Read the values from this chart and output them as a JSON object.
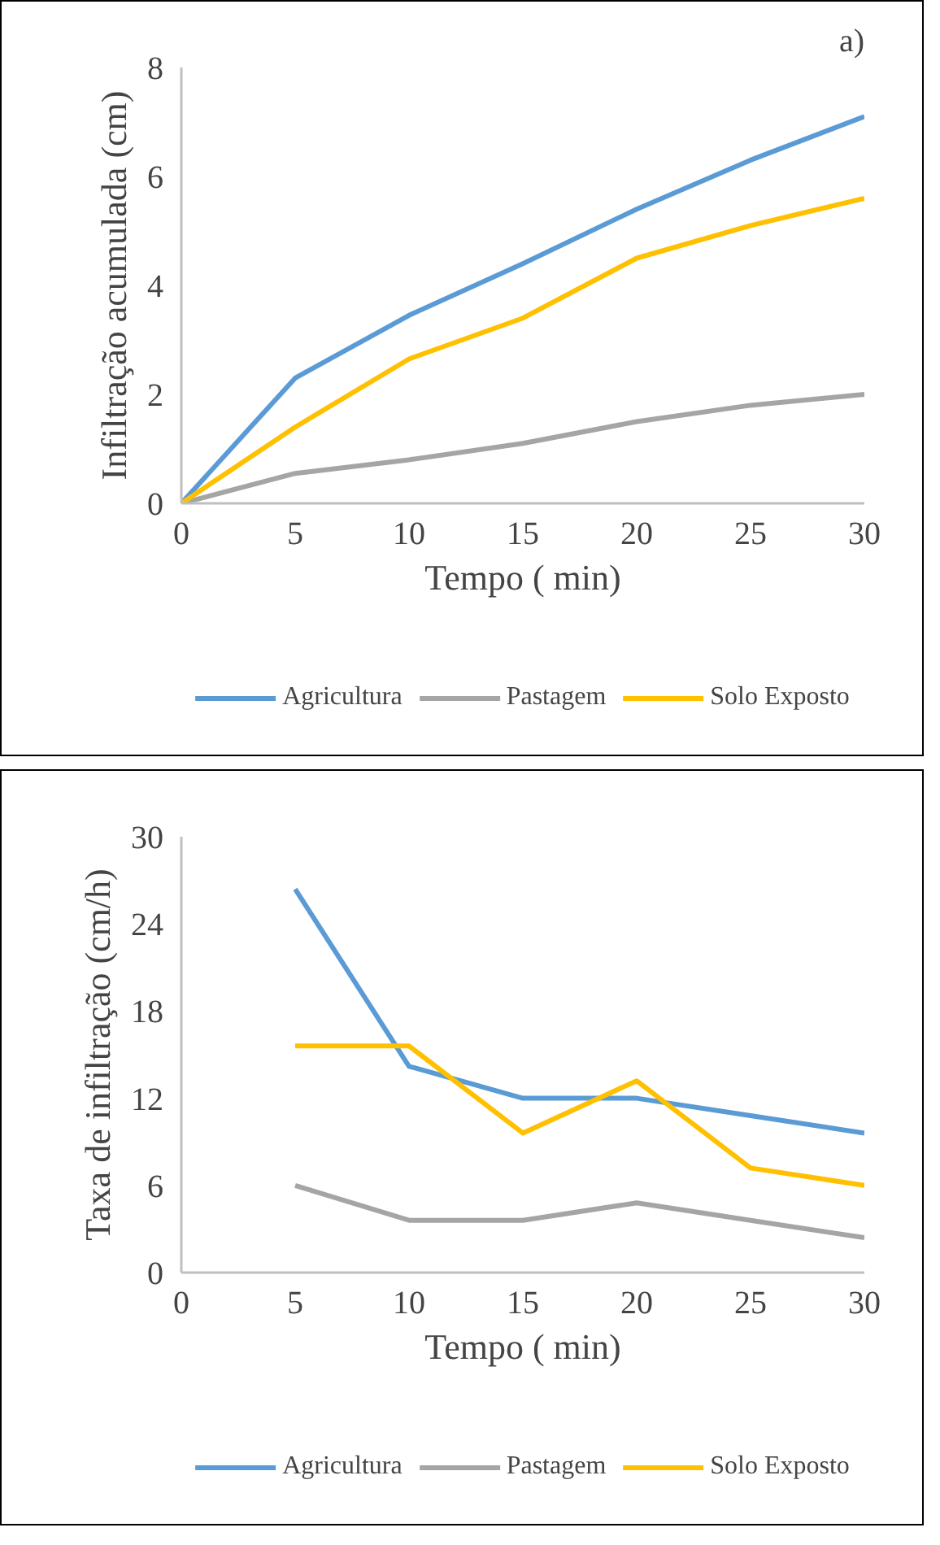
{
  "chart_data": [
    {
      "type": "line",
      "ylabel": "Infiltração acumulada (cm)",
      "xlabel": "Tempo ( min)",
      "annotations": [
        "a)"
      ],
      "x": [
        0,
        5,
        10,
        15,
        20,
        25,
        30
      ],
      "xlim": [
        0,
        30
      ],
      "xticks": [
        0,
        5,
        10,
        15,
        20,
        25,
        30
      ],
      "ylim": [
        0,
        8
      ],
      "yticks": [
        0,
        2,
        4,
        6,
        8
      ],
      "grid": false,
      "legend": "bottom",
      "series": [
        {
          "name": "Agricultura",
          "color": "#5b9bd5",
          "values": [
            0,
            2.3,
            3.45,
            4.4,
            5.4,
            6.3,
            7.1
          ]
        },
        {
          "name": "Pastagem",
          "color": "#a5a5a5",
          "values": [
            0,
            0.55,
            0.8,
            1.1,
            1.5,
            1.8,
            2.0
          ]
        },
        {
          "name": "Solo Exposto",
          "color": "#ffc000",
          "values": [
            0,
            1.4,
            2.65,
            3.4,
            4.5,
            5.1,
            5.6
          ]
        }
      ]
    },
    {
      "type": "line",
      "ylabel": "Taxa de infiltração (cm/h)",
      "xlabel": "Tempo ( min)",
      "x": [
        5,
        10,
        15,
        20,
        25,
        30
      ],
      "xlim": [
        0,
        30
      ],
      "xticks": [
        0,
        5,
        10,
        15,
        20,
        25,
        30
      ],
      "ylim": [
        0,
        30
      ],
      "yticks": [
        0,
        6,
        12,
        18,
        24,
        30
      ],
      "grid": false,
      "legend": "bottom",
      "series": [
        {
          "name": "Agricultura",
          "color": "#5b9bd5",
          "values": [
            26.4,
            14.2,
            12.0,
            12.0,
            10.8,
            9.6
          ]
        },
        {
          "name": "Pastagem",
          "color": "#a5a5a5",
          "values": [
            6.0,
            3.6,
            3.6,
            4.8,
            3.6,
            2.4
          ]
        },
        {
          "name": "Solo Exposto",
          "color": "#ffc000",
          "values": [
            15.6,
            15.6,
            9.6,
            13.2,
            7.2,
            6.0
          ]
        }
      ]
    }
  ]
}
